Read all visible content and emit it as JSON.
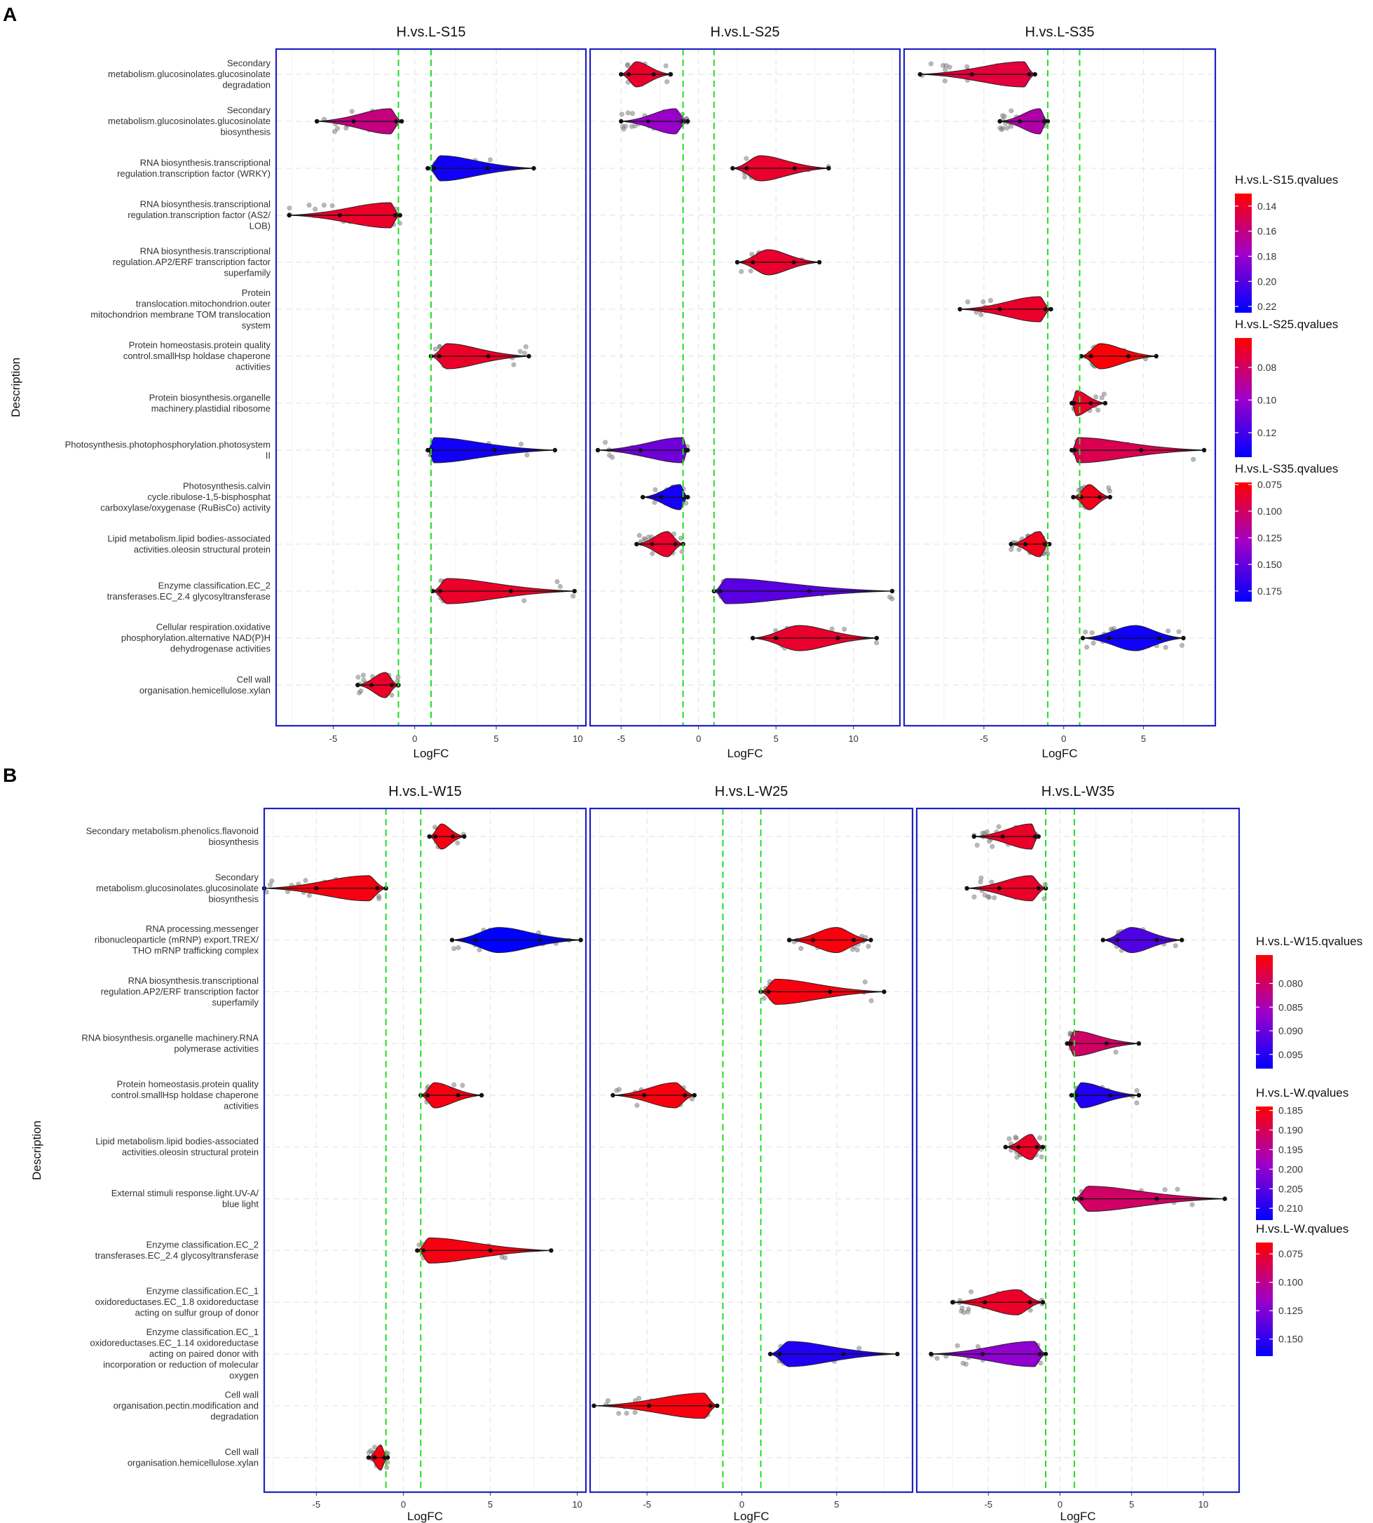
{
  "figure": {
    "panel_letters": [
      "A",
      "B"
    ]
  },
  "colors": {
    "low": "#ff0000",
    "mid": "#a000c8",
    "high": "#0000ff",
    "border": "#2020c8",
    "threshold": "#22dd22",
    "grid": "#e6e6e6",
    "points": "#808080"
  },
  "chart_data": [
    {
      "type": "violin",
      "panel": "A",
      "ylabel": "Description",
      "categories": [
        [
          "Secondary",
          "metabolism.glucosinolates.glucosinolate",
          "degradation"
        ],
        [
          "Secondary",
          "metabolism.glucosinolates.glucosinolate",
          "biosynthesis"
        ],
        [
          "RNA biosynthesis.transcriptional",
          "regulation.transcription factor (WRKY)"
        ],
        [
          "RNA biosynthesis.transcriptional",
          "regulation.transcription factor (AS2/",
          "LOB)"
        ],
        [
          "RNA biosynthesis.transcriptional",
          "regulation.AP2/ERF transcription factor",
          "superfamily"
        ],
        [
          "Protein",
          "translocation.mitochondrion.outer",
          "mitochondrion membrane TOM translocation",
          "system"
        ],
        [
          "Protein homeostasis.protein quality",
          "control.smallHsp holdase chaperone",
          "activities"
        ],
        [
          "Protein biosynthesis.organelle",
          "machinery.plastidial ribosome"
        ],
        [
          "Photosynthesis.photophosphorylation.photosystem",
          "II"
        ],
        [
          "Photosynthesis.calvin",
          "cycle.ribulose-1,5-bisphosphat",
          "carboxylase/oxygenase (RuBisCo) activity"
        ],
        [
          "Lipid metabolism.lipid bodies-associated",
          "activities.oleosin structural protein"
        ],
        [
          "Enzyme classification.EC_2",
          "transferases.EC_2.4 glycosyltransferase"
        ],
        [
          "Cellular respiration.oxidative",
          "phosphorylation.alternative NAD(P)H",
          "dehydrogenase activities"
        ],
        [
          "Cell wall",
          "organisation.hemicellulose.xylan"
        ]
      ],
      "facets": [
        {
          "title": "H.vs.L-S15",
          "xlabel": "LogFC",
          "xlim": [
            -8.5,
            10.5
          ],
          "xticks": [
            -5,
            0,
            5,
            10
          ],
          "xtick_labels": [
            "-5",
            "0",
            "5",
            "10"
          ],
          "thresholds": [
            -1,
            1
          ],
          "violins": [
            {
              "row": 1,
              "min": -6,
              "max": -0.8,
              "peak": -1.5,
              "q": 0.16
            },
            {
              "row": 2,
              "min": 0.8,
              "max": 7.3,
              "peak": 1.6,
              "q": 0.22
            },
            {
              "row": 3,
              "min": -7.7,
              "max": -0.9,
              "peak": -1.5,
              "q": 0.14
            },
            {
              "row": 6,
              "min": 1.0,
              "max": 7.0,
              "peak": 2.0,
              "q": 0.14
            },
            {
              "row": 8,
              "min": 0.8,
              "max": 8.6,
              "peak": 1.2,
              "q": 0.22
            },
            {
              "row": 11,
              "min": 1.1,
              "max": 9.8,
              "peak": 2.0,
              "q": 0.14
            },
            {
              "row": 13,
              "min": -3.5,
              "max": -1.0,
              "peak": -1.8,
              "q": 0.14
            }
          ]
        },
        {
          "title": "H.vs.L-S25",
          "xlabel": "LogFC",
          "xlim": [
            -7,
            13
          ],
          "xticks": [
            -5,
            0,
            5,
            10
          ],
          "xtick_labels": [
            "-5",
            "0",
            "5",
            "10"
          ],
          "thresholds": [
            -1,
            1
          ],
          "violins": [
            {
              "row": 0,
              "min": -5.0,
              "max": -1.8,
              "peak": -4.0,
              "q": 0.07
            },
            {
              "row": 1,
              "min": -5.0,
              "max": -0.7,
              "peak": -1.5,
              "q": 0.1
            },
            {
              "row": 2,
              "min": 2.2,
              "max": 8.4,
              "peak": 4.0,
              "q": 0.07
            },
            {
              "row": 4,
              "min": 2.5,
              "max": 7.8,
              "peak": 4.5,
              "q": 0.07
            },
            {
              "row": 8,
              "min": -6.5,
              "max": -0.7,
              "peak": -1.0,
              "q": 0.11
            },
            {
              "row": 9,
              "min": -3.6,
              "max": -0.7,
              "peak": -1.2,
              "q": 0.13
            },
            {
              "row": 10,
              "min": -4.0,
              "max": -1.0,
              "peak": -2.0,
              "q": 0.07
            },
            {
              "row": 11,
              "min": 1.0,
              "max": 12.5,
              "peak": 1.8,
              "q": 0.115
            },
            {
              "row": 12,
              "min": 3.5,
              "max": 11.5,
              "peak": 6.5,
              "q": 0.07
            }
          ]
        },
        {
          "title": "H.vs.L-S35",
          "xlabel": "LogFC",
          "xlim": [
            -10,
            9.5
          ],
          "xticks": [
            -5,
            0,
            5
          ],
          "xtick_labels": [
            "-5",
            "0",
            "5"
          ],
          "thresholds": [
            -1,
            1
          ],
          "violins": [
            {
              "row": 0,
              "min": -9.0,
              "max": -1.8,
              "peak": -2.5,
              "q": 0.09
            },
            {
              "row": 1,
              "min": -4.0,
              "max": -1.0,
              "peak": -1.5,
              "q": 0.12
            },
            {
              "row": 5,
              "min": -6.5,
              "max": -0.8,
              "peak": -1.5,
              "q": 0.085
            },
            {
              "row": 6,
              "min": 1.1,
              "max": 5.8,
              "peak": 2.3,
              "q": 0.075
            },
            {
              "row": 7,
              "min": 0.5,
              "max": 2.6,
              "peak": 0.8,
              "q": 0.085
            },
            {
              "row": 8,
              "min": 0.5,
              "max": 8.8,
              "peak": 0.9,
              "q": 0.095
            },
            {
              "row": 9,
              "min": 0.6,
              "max": 2.9,
              "peak": 1.6,
              "q": 0.08
            },
            {
              "row": 10,
              "min": -3.3,
              "max": -0.9,
              "peak": -1.5,
              "q": 0.08
            },
            {
              "row": 12,
              "min": 1.2,
              "max": 7.5,
              "peak": 4.5,
              "q": 0.18
            }
          ]
        }
      ],
      "legends": [
        {
          "title": "H.vs.L-S15.qvalues",
          "min": 0.13,
          "max": 0.225,
          "ticks": [
            0.14,
            0.16,
            0.18,
            0.2,
            0.22
          ],
          "tick_labels": [
            "0.14",
            "0.16",
            "0.18",
            "0.20",
            "0.22"
          ]
        },
        {
          "title": "H.vs.L-S25.qvalues",
          "min": 0.062,
          "max": 0.135,
          "ticks": [
            0.08,
            0.1,
            0.12
          ],
          "tick_labels": [
            "0.08",
            "0.10",
            "0.12"
          ]
        },
        {
          "title": "H.vs.L-S35.qvalues",
          "min": 0.073,
          "max": 0.185,
          "ticks": [
            0.075,
            0.1,
            0.125,
            0.15,
            0.175
          ],
          "tick_labels": [
            "0.075",
            "0.100",
            "0.125",
            "0.150",
            "0.175"
          ]
        }
      ]
    },
    {
      "type": "violin",
      "panel": "B",
      "ylabel": "Description",
      "categories": [
        [
          "Secondary metabolism.phenolics.flavonoid",
          "biosynthesis"
        ],
        [
          "Secondary",
          "metabolism.glucosinolates.glucosinolate",
          "biosynthesis"
        ],
        [
          "RNA processing.messenger",
          "ribonucleoparticle (mRNP) export.TREX/",
          "THO mRNP trafficking complex"
        ],
        [
          "RNA biosynthesis.transcriptional",
          "regulation.AP2/ERF transcription factor",
          "superfamily"
        ],
        [
          "RNA biosynthesis.organelle machinery.RNA",
          "polymerase activities"
        ],
        [
          "Protein homeostasis.protein quality",
          "control.smallHsp holdase chaperone",
          "activities"
        ],
        [
          "Lipid metabolism.lipid bodies-associated",
          "activities.oleosin structural protein"
        ],
        [
          "External stimuli response.light.UV-A/",
          "blue light"
        ],
        [
          "Enzyme classification.EC_2",
          "transferases.EC_2.4 glycosyltransferase"
        ],
        [
          "Enzyme classification.EC_1",
          "oxidoreductases.EC_1.8 oxidoreductase",
          "acting on sulfur group of donor"
        ],
        [
          "Enzyme classification.EC_1",
          "oxidoreductases.EC_1.14 oxidoreductase",
          "acting on paired donor with",
          "incorporation or reduction of molecular",
          "oxygen"
        ],
        [
          "Cell wall",
          "organisation.pectin.modification and",
          "degradation"
        ],
        [
          "Cell wall",
          "organisation.hemicellulose.xylan"
        ]
      ],
      "facets": [
        {
          "title": "H.vs.L-W15",
          "xlabel": "LogFC",
          "xlim": [
            -8,
            10.5
          ],
          "xticks": [
            -5,
            0,
            5,
            10
          ],
          "xtick_labels": [
            "-5",
            "0",
            "5",
            "10"
          ],
          "thresholds": [
            -1,
            1
          ],
          "violins": [
            {
              "row": 0,
              "min": 1.5,
              "max": 3.5,
              "peak": 2.2,
              "q": 0.075
            },
            {
              "row": 1,
              "min": -8.0,
              "max": -1.0,
              "peak": -2.0,
              "q": 0.075
            },
            {
              "row": 2,
              "min": 2.8,
              "max": 10.2,
              "peak": 5.5,
              "q": 0.098
            },
            {
              "row": 5,
              "min": 1.0,
              "max": 4.5,
              "peak": 1.8,
              "q": 0.075
            },
            {
              "row": 8,
              "min": 0.8,
              "max": 8.5,
              "peak": 1.5,
              "q": 0.075
            },
            {
              "row": 12,
              "min": -2.0,
              "max": -0.9,
              "peak": -1.3,
              "q": 0.075
            }
          ]
        },
        {
          "title": "H.vs.L-W25",
          "xlabel": "LogFC",
          "xlim": [
            -8,
            9
          ],
          "xticks": [
            -5,
            0,
            5
          ],
          "xtick_labels": [
            "-5",
            "0",
            "5"
          ],
          "thresholds": [
            -1,
            1
          ],
          "violins": [
            {
              "row": 2,
              "min": 2.5,
              "max": 6.8,
              "peak": 5.0,
              "q": 0.185
            },
            {
              "row": 3,
              "min": 1.0,
              "max": 7.5,
              "peak": 1.8,
              "q": 0.185
            },
            {
              "row": 5,
              "min": -6.8,
              "max": -2.5,
              "peak": -3.5,
              "q": 0.185
            },
            {
              "row": 10,
              "min": 1.5,
              "max": 8.2,
              "peak": 2.5,
              "q": 0.21
            },
            {
              "row": 11,
              "min": -7.8,
              "max": -1.3,
              "peak": -2.0,
              "q": 0.185
            }
          ]
        },
        {
          "title": "H.vs.L-W35",
          "xlabel": "LogFC",
          "xlim": [
            -10,
            12.5
          ],
          "xticks": [
            -5,
            0,
            5,
            10
          ],
          "xtick_labels": [
            "-5",
            "0",
            "5",
            "10"
          ],
          "thresholds": [
            -1,
            1
          ],
          "violins": [
            {
              "row": 0,
              "min": -6.0,
              "max": -1.5,
              "peak": -2.0,
              "q": 0.075
            },
            {
              "row": 1,
              "min": -6.5,
              "max": -1.0,
              "peak": -2.0,
              "q": 0.075
            },
            {
              "row": 2,
              "min": 3.0,
              "max": 8.5,
              "peak": 5.0,
              "q": 0.14
            },
            {
              "row": 4,
              "min": 0.5,
              "max": 5.5,
              "peak": 1.0,
              "q": 0.09
            },
            {
              "row": 5,
              "min": 0.8,
              "max": 5.5,
              "peak": 1.5,
              "q": 0.155
            },
            {
              "row": 6,
              "min": -3.8,
              "max": -1.2,
              "peak": -2.0,
              "q": 0.075
            },
            {
              "row": 7,
              "min": 1.0,
              "max": 11.5,
              "peak": 2.0,
              "q": 0.09
            },
            {
              "row": 9,
              "min": -7.5,
              "max": -1.2,
              "peak": -3.0,
              "q": 0.075
            },
            {
              "row": 10,
              "min": -9.0,
              "max": -1.0,
              "peak": -1.8,
              "q": 0.12
            }
          ]
        }
      ],
      "legends": [
        {
          "title": "H.vs.L-W15.qvalues",
          "min": 0.074,
          "max": 0.098,
          "ticks": [
            0.08,
            0.085,
            0.09,
            0.095
          ],
          "tick_labels": [
            "0.080",
            "0.085",
            "0.090",
            "0.095"
          ]
        },
        {
          "title": "H.vs.L-W.qvalues",
          "min": 0.184,
          "max": 0.213,
          "ticks": [
            0.185,
            0.19,
            0.195,
            0.2,
            0.205,
            0.21
          ],
          "tick_labels": [
            "0.185",
            "0.190",
            "0.195",
            "0.200",
            "0.205",
            "0.210"
          ]
        },
        {
          "title": "H.vs.L-W.qvalues",
          "min": 0.065,
          "max": 0.165,
          "ticks": [
            0.075,
            0.1,
            0.125,
            0.15
          ],
          "tick_labels": [
            "0.075",
            "0.100",
            "0.125",
            "0.150"
          ]
        }
      ]
    }
  ]
}
